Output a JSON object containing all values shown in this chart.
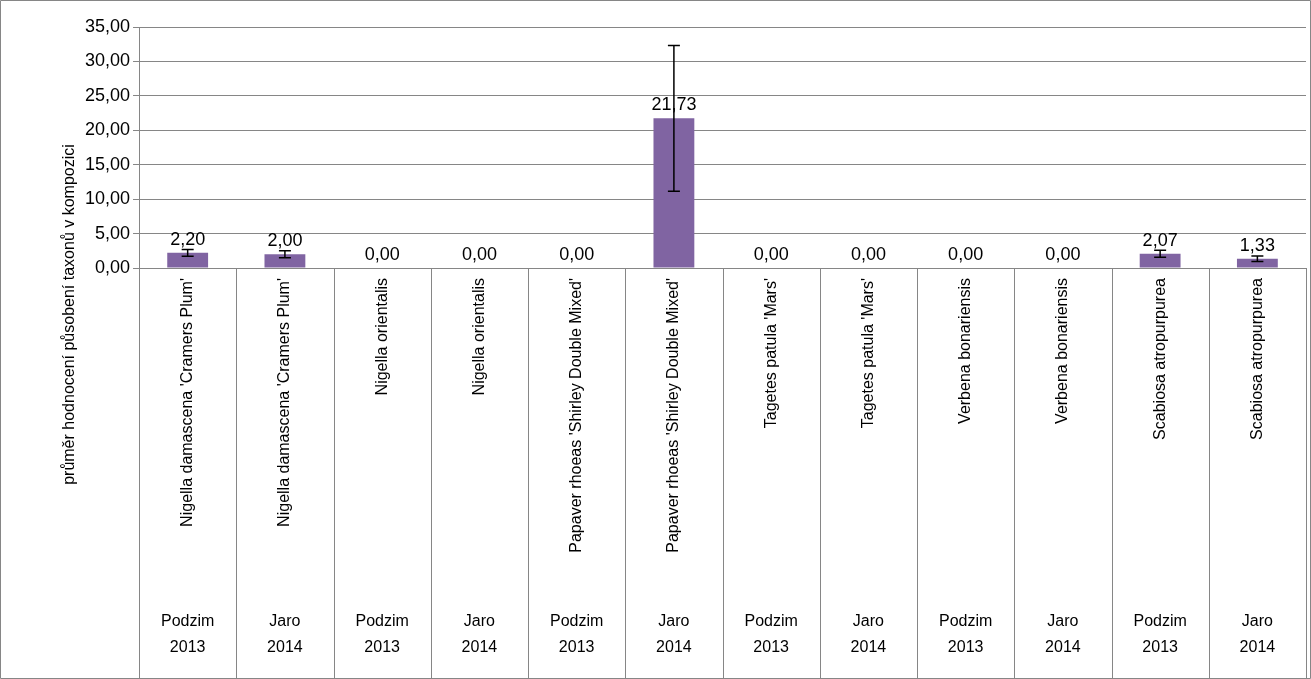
{
  "chart_data": {
    "type": "bar",
    "ylabel": "průměr hodnocení působení taxonů v kompozici",
    "categories": [
      "Nigella damascena 'Cramers Plum'\nPodzim 2013",
      "Nigella damascena 'Cramers Plum'\nJaro 2014",
      "Nigella orientalis\nPodzim 2013",
      "Nigella orientalis\nJaro 2014",
      "Papaver rhoeas 'Shirley Double Mixed'\nPodzim 2013",
      "Papaver rhoeas 'Shirley Double Mixed'\nJaro 2014",
      "Tagetes patula 'Mars'\nPodzim 2013",
      "Tagetes patula 'Mars'\nJaro 2014",
      "Verbena bonariensis\nPodzim 2013",
      "Verbena bonariensis\nJaro 2014",
      "Scabiosa atropurpurea\nPodzim 2013",
      "Scabiosa atropurpurea\nJaro 2014"
    ],
    "values": [
      2.2,
      2.0,
      0,
      0,
      0,
      21.73,
      0,
      0,
      0,
      0,
      2.07,
      1.33
    ],
    "value_labels": [
      "2,20",
      "2,00",
      "0,00",
      "0,00",
      "0,00",
      "21,73",
      "0,00",
      "0,00",
      "0,00",
      "0,00",
      "2,07",
      "1,33"
    ],
    "errors": [
      0.5,
      0.5,
      null,
      null,
      null,
      10.6,
      null,
      null,
      null,
      null,
      0.5,
      0.4
    ],
    "color": "#8064a2",
    "ylim": [
      0,
      35
    ],
    "yticks": [
      {
        "value": 0,
        "label": "0,00"
      },
      {
        "value": 5,
        "label": "5,00"
      },
      {
        "value": 10,
        "label": "10,00"
      },
      {
        "value": 15,
        "label": "15,00"
      },
      {
        "value": 20,
        "label": "20,00"
      },
      {
        "value": 25,
        "label": "25,00"
      },
      {
        "value": 30,
        "label": "30,00"
      },
      {
        "value": 35,
        "label": "35,00"
      }
    ],
    "grid": "y",
    "legend": false
  }
}
